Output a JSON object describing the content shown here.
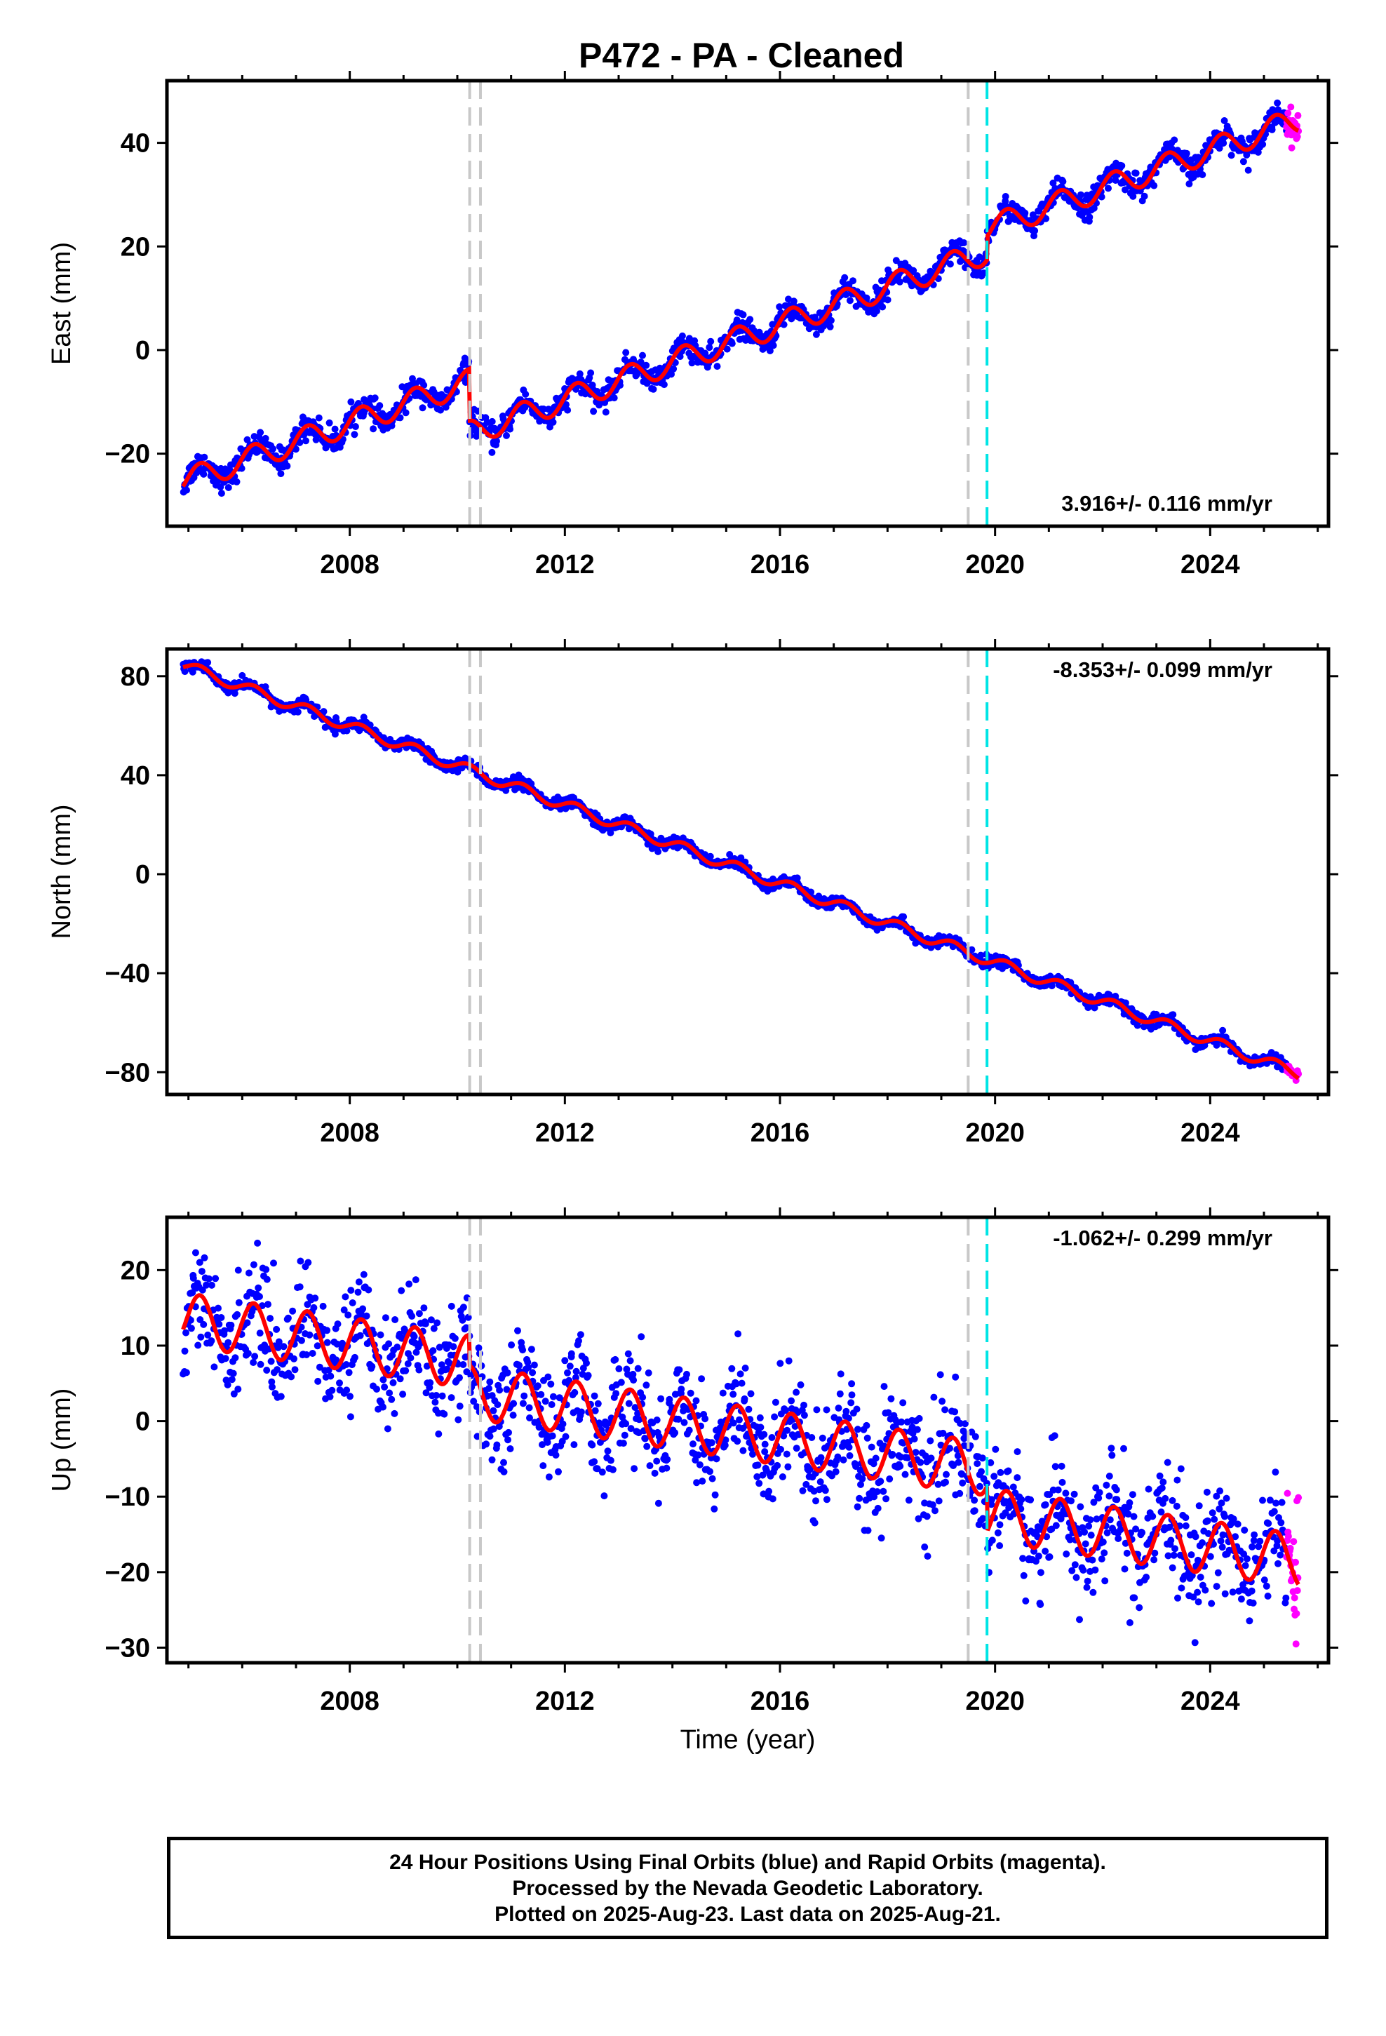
{
  "title": "P472  - PA - Cleaned",
  "x_axis_label": "Time (year)",
  "footer": {
    "line1": "24 Hour Positions Using Final Orbits (blue) and Rapid Orbits (magenta).",
    "line2": "Processed by the Nevada Geodetic Laboratory.",
    "line3": "Plotted on 2025-Aug-23. Last data on 2025-Aug-21."
  },
  "colors": {
    "final_points": "#0000ff",
    "rapid_points": "#ff00ff",
    "model_fit": "#ff0000",
    "equipment_change_lines": "#c8c8c8",
    "earthquake_line": "#00e5e5",
    "frame": "#000000"
  },
  "chart_data": [
    {
      "type": "scatter",
      "component": "east",
      "ylabel": "East (mm)",
      "xlim": [
        2004.6,
        2026.2
      ],
      "ylim": [
        -34,
        52
      ],
      "x_ticks": [
        2008,
        2012,
        2016,
        2020,
        2024
      ],
      "y_ticks": [
        -20,
        0,
        20,
        40
      ],
      "rate_text": "3.916+/- 0.116 mm/yr",
      "rate_position": "bottom-right",
      "equipment_change_years": [
        2010.23,
        2010.43,
        2019.5
      ],
      "earthquake_years": [
        2019.85
      ],
      "rapid_orbits_span": [
        2025.42,
        2025.64
      ],
      "model": {
        "start_year": 2004.9,
        "start_value": -25.4,
        "end_year": 2025.64,
        "end_value": 44.5,
        "annual_amplitude": 2.4,
        "offsets": [
          {
            "year": 2010.23,
            "step": -10
          },
          {
            "year": 2019.85,
            "step": 4.5
          }
        ]
      },
      "scatter_noise_mm": 1.2
    },
    {
      "type": "scatter",
      "component": "north",
      "ylabel": "North (mm)",
      "xlim": [
        2004.6,
        2026.2
      ],
      "ylim": [
        -89,
        91
      ],
      "x_ticks": [
        2008,
        2012,
        2016,
        2020,
        2024
      ],
      "y_ticks": [
        -80,
        -40,
        0,
        40,
        80
      ],
      "rate_text": "-8.353+/- 0.099 mm/yr",
      "rate_position": "top-right",
      "equipment_change_years": [
        2010.23,
        2010.43,
        2019.5
      ],
      "earthquake_years": [
        2019.85
      ],
      "rapid_orbits_span": [
        2025.42,
        2025.64
      ],
      "model": {
        "start_year": 2004.9,
        "start_value": 84.5,
        "end_year": 2025.64,
        "end_value": -80.5,
        "annual_amplitude": 2.2,
        "offsets": []
      },
      "scatter_noise_mm": 1.2
    },
    {
      "type": "scatter",
      "component": "up",
      "ylabel": "Up (mm)",
      "xlim": [
        2004.6,
        2026.2
      ],
      "ylim": [
        -32,
        27
      ],
      "x_ticks": [
        2008,
        2012,
        2016,
        2020,
        2024
      ],
      "y_ticks": [
        -30,
        -20,
        -10,
        0,
        10,
        20
      ],
      "rate_text": "-1.062+/- 0.299 mm/yr",
      "rate_position": "top-right",
      "equipment_change_years": [
        2010.23,
        2010.43,
        2019.5
      ],
      "earthquake_years": [
        2019.85
      ],
      "rapid_orbits_span": [
        2025.42,
        2025.64
      ],
      "model": {
        "start_year": 2004.9,
        "start_value": 13.5,
        "end_year": 2025.64,
        "end_value": -18.5,
        "annual_amplitude": 3.5,
        "offsets": [
          {
            "year": 2010.23,
            "step": -4
          },
          {
            "year": 2019.85,
            "step": -6
          }
        ]
      },
      "scatter_noise_mm": 3.5
    }
  ]
}
